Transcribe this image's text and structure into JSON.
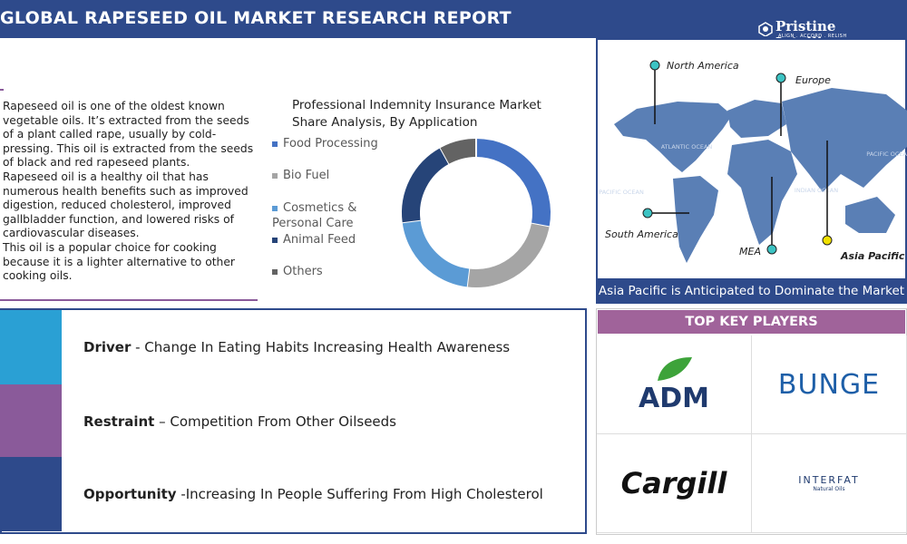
{
  "header": {
    "title": "GLOBAL RAPESEED OIL MARKET RESEARCH REPORT",
    "brand": "Pristine Intelligence",
    "tagline": "ALIGN . ACCORD . RELISH"
  },
  "description": [
    "Rapeseed oil is one of the oldest known vegetable oils. It’s extracted from the seeds of a plant called rape, usually by cold-pressing. This oil is extracted from the seeds of black and red rapeseed plants.",
    "Rapeseed oil is a healthy oil that has numerous health benefits such as improved digestion, reduced cholesterol, improved gallbladder function, and lowered risks of cardiovascular diseases.",
    "This oil is a popular choice for cooking because it is a lighter alternative to other cooking oils."
  ],
  "chart_data": {
    "type": "donut",
    "title": "Professional Indemnity Insurance Market Share Analysis, By Application",
    "categories": [
      "Food Processing",
      "Bio Fuel",
      "Cosmetics & Personal Care",
      "Animal Feed",
      "Others"
    ],
    "values": [
      28,
      24,
      21,
      19,
      8
    ],
    "colors": [
      "#4472c4",
      "#a5a5a5",
      "#5b9bd5",
      "#264478",
      "#636363"
    ]
  },
  "map": {
    "regions": [
      "North America",
      "Europe",
      "South America",
      "MEA",
      "Asia Pacific"
    ],
    "oceans": [
      "ATLANTIC OCEAN",
      "PACIFIC OCEAN",
      "INDIAN OCEAN",
      "PACIFIC OCEAN"
    ],
    "caption": "Asia Pacific is Anticipated to Dominate the Market"
  },
  "factors": [
    {
      "label": "Driver",
      "text": " - Change In Eating Habits Increasing Health Awareness"
    },
    {
      "label": "Restraint",
      "text": " – Competition From Other Oilseeds"
    },
    {
      "label": "Opportunity",
      "text": " -Increasing In People Suffering From High Cholesterol"
    }
  ],
  "key_players": {
    "title": "TOP KEY PLAYERS",
    "players": [
      "ADM",
      "BUNGE",
      "Cargill",
      "INTERFAT"
    ],
    "interfat_sub": "Natural Oils"
  }
}
